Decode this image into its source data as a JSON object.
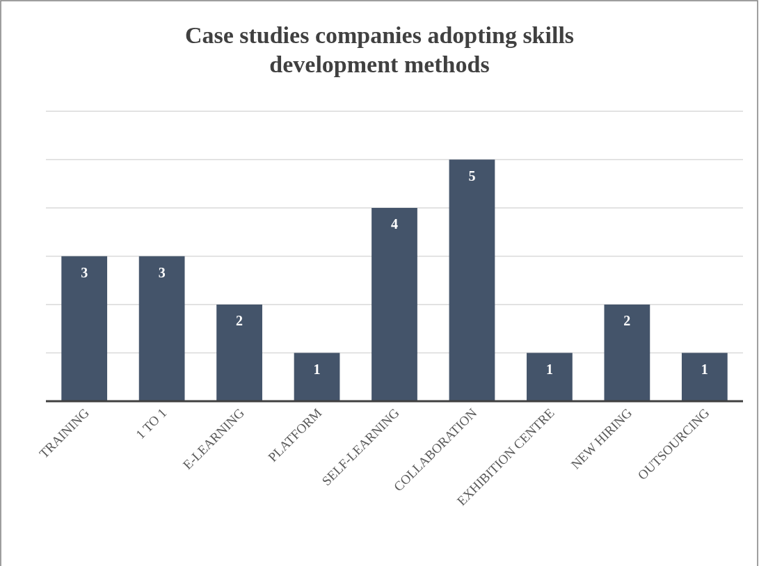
{
  "chart_data": {
    "type": "bar",
    "title": "Case studies companies adopting skills development methods",
    "categories": [
      "TRAINING",
      "1 TO 1",
      "E-LEARNING",
      "PLATFORM",
      "SELF-LEARNING",
      "COLLABORATION",
      "EXHIBITION CENTRE",
      "NEW HIRING",
      "OUTSOURCING"
    ],
    "values": [
      3,
      3,
      2,
      1,
      4,
      5,
      1,
      2,
      1
    ],
    "color": "#44546a",
    "ylim": [
      0,
      6
    ],
    "yticks": [
      {
        "value": 0,
        "label": null
      },
      {
        "value": 1,
        "label": null
      },
      {
        "value": 2,
        "label": null
      },
      {
        "value": 3,
        "label": null
      },
      {
        "value": 4,
        "label": null
      },
      {
        "value": 5,
        "label": null
      },
      {
        "value": 6,
        "label": null
      }
    ],
    "grid": "y",
    "tick_labels": "x",
    "data_labels": true
  }
}
